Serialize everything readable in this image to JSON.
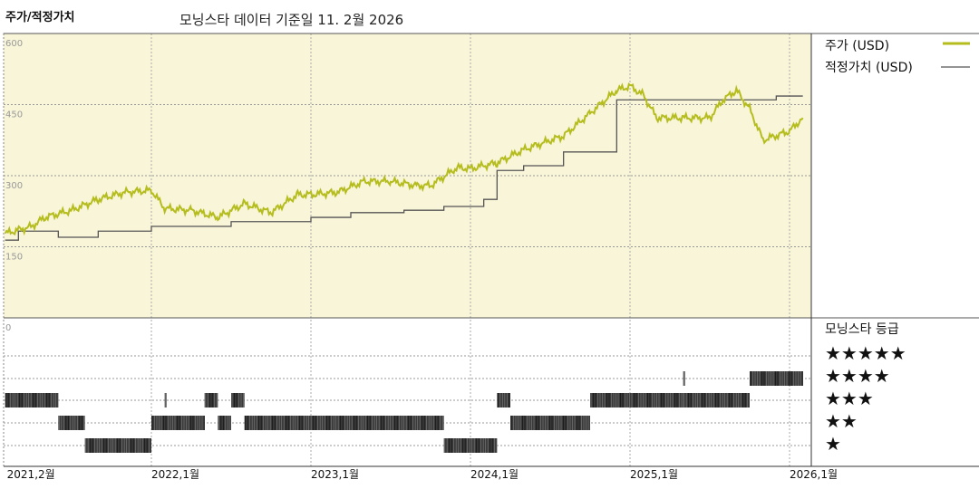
{
  "header": {
    "section_title": "주가/적정가치",
    "data_date": "모닝스타 데이터 기준일 11. 2월 2026"
  },
  "legend": {
    "price": "주가 (USD)",
    "fair_value": "적정가치 (USD)",
    "rating_title": "모닝스타 등급",
    "stars": [
      "★★★★★",
      "★★★★",
      "★★★",
      "★★",
      "★"
    ]
  },
  "chart_data": [
    {
      "type": "line",
      "ylim": [
        0,
        600
      ],
      "yticks": [
        "600",
        "450",
        "300",
        "150",
        "0"
      ],
      "xticks": [
        "2021,2월",
        "2022,1월",
        "2023,1월",
        "2024,1월",
        "2025,1월",
        "2026,1월"
      ],
      "colors": {
        "price": "#b5bd1e",
        "fair_value": "#555555",
        "background": "#f8f5d8"
      },
      "series": [
        {
          "name": "주가 (USD)",
          "points": [
            [
              "2021-02",
              178
            ],
            [
              "2021-04",
              193
            ],
            [
              "2021-05",
              212
            ],
            [
              "2021-07",
              227
            ],
            [
              "2021-09",
              250
            ],
            [
              "2021-11",
              265
            ],
            [
              "2022-01",
              269
            ],
            [
              "2022-02",
              231
            ],
            [
              "2022-04",
              227
            ],
            [
              "2022-06",
              212
            ],
            [
              "2022-08",
              241
            ],
            [
              "2022-10",
              222
            ],
            [
              "2022-12",
              260
            ],
            [
              "2023-01",
              260
            ],
            [
              "2023-03",
              265
            ],
            [
              "2023-05",
              288
            ],
            [
              "2023-07",
              288
            ],
            [
              "2023-09",
              279
            ],
            [
              "2023-10",
              279
            ],
            [
              "2023-12",
              317
            ],
            [
              "2024-01",
              315
            ],
            [
              "2024-03",
              327
            ],
            [
              "2024-05",
              355
            ],
            [
              "2024-08",
              384
            ],
            [
              "2024-10",
              432
            ],
            [
              "2024-12",
              480
            ],
            [
              "2025-01",
              489
            ],
            [
              "2025-02",
              470
            ],
            [
              "2025-03",
              422
            ],
            [
              "2025-05",
              422
            ],
            [
              "2025-07",
              422
            ],
            [
              "2025-08",
              460
            ],
            [
              "2025-09",
              480
            ],
            [
              "2025-10",
              441
            ],
            [
              "2025-11",
              375
            ],
            [
              "2026-01",
              394
            ],
            [
              "2026-02",
              422
            ]
          ]
        },
        {
          "name": "적정가치 (USD)",
          "points": [
            [
              "2021-02",
              164
            ],
            [
              "2021-03",
              183
            ],
            [
              "2021-06",
              170
            ],
            [
              "2021-09",
              183
            ],
            [
              "2022-01",
              193
            ],
            [
              "2022-07",
              203
            ],
            [
              "2023-01",
              212
            ],
            [
              "2023-04",
              222
            ],
            [
              "2023-08",
              227
            ],
            [
              "2023-11",
              235
            ],
            [
              "2024-02",
              250
            ],
            [
              "2024-03",
              311
            ],
            [
              "2024-05",
              321
            ],
            [
              "2024-08",
              350
            ],
            [
              "2024-12",
              460
            ],
            [
              "2025-12",
              468
            ],
            [
              "2026-02",
              468
            ]
          ]
        }
      ]
    },
    {
      "type": "rating",
      "name": "모닝스타 등급",
      "segments": [
        [
          "2021-02",
          "2021-06",
          3
        ],
        [
          "2021-06",
          "2021-08",
          2
        ],
        [
          "2021-08",
          "2022-01",
          1
        ],
        [
          "2022-01",
          "2022-05",
          2
        ],
        [
          "2022-02",
          "2022-02",
          3
        ],
        [
          "2022-05",
          "2022-06",
          3
        ],
        [
          "2022-06",
          "2022-07",
          2
        ],
        [
          "2022-07",
          "2022-08",
          3
        ],
        [
          "2022-08",
          "2023-11",
          2
        ],
        [
          "2023-11",
          "2024-03",
          1
        ],
        [
          "2024-03",
          "2024-04",
          3
        ],
        [
          "2024-04",
          "2024-10",
          2
        ],
        [
          "2024-10",
          "2025-05",
          3
        ],
        [
          "2025-05",
          "2025-05",
          4
        ],
        [
          "2025-05",
          "2025-10",
          3
        ],
        [
          "2025-10",
          "2026-02",
          4
        ]
      ]
    }
  ]
}
